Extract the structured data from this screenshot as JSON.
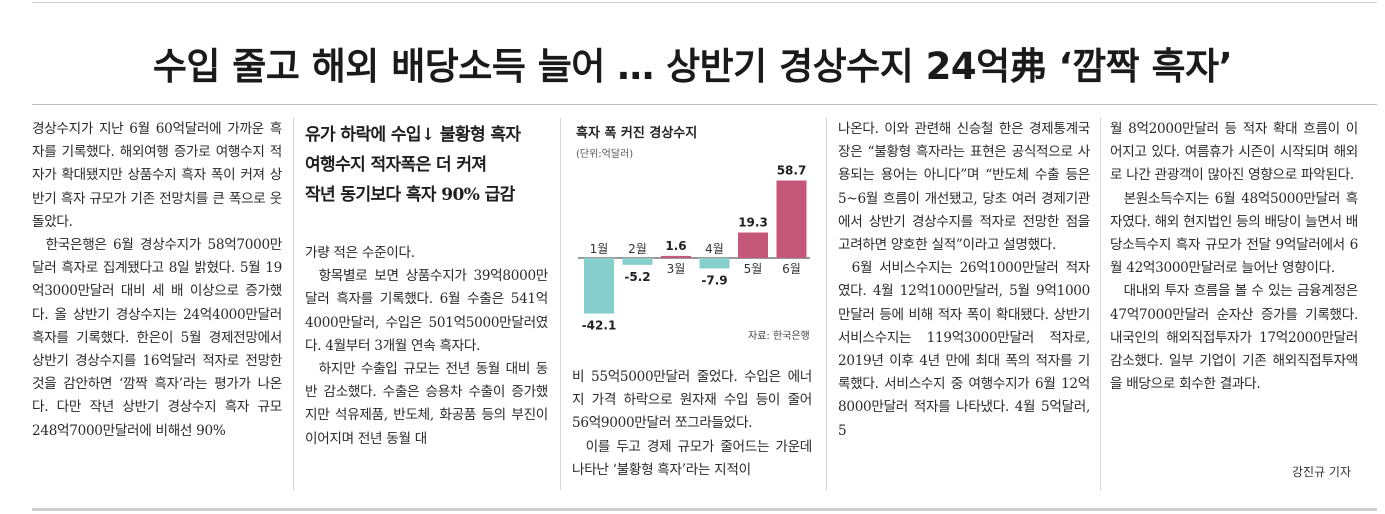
{
  "headline": "수입 줄고 해외 배당소득 늘어 … 상반기 경상수지 24억弗 ‘깜짝 흑자’",
  "subhead": {
    "line1": "유가 하락에 수입↓ 불황형 흑자",
    "line2": "여행수지 적자폭은 더 커져",
    "line3": "작년 동기보다 흑자 90% 급감"
  },
  "chart_data": {
    "type": "bar",
    "title": "흑자 폭 커진 경상수지",
    "unit": "(단위:억달러)",
    "categories": [
      "1월",
      "2월",
      "3월",
      "4월",
      "5월",
      "6월"
    ],
    "values": [
      -42.1,
      -5.2,
      1.6,
      -7.9,
      19.3,
      58.7
    ],
    "value_labels": [
      "-42.1",
      "-5.2",
      "1.6",
      "-7.9",
      "19.3",
      "58.7"
    ],
    "source": "자료: 한국은행",
    "colors": {
      "negative": "#86cfcd",
      "positive": "#c4577a"
    },
    "ylim": [
      -45,
      60
    ]
  },
  "columns": {
    "col1": [
      "경상수지가 지난 6월 60억달러에 가까운 흑자를 기록했다. 해외여행 증가로 여행수지 적자가 확대됐지만 상품수지 흑자 폭이 커져 상반기 흑자 규모가 기존 전망치를 큰 폭으로 웃돌았다.",
      "한국은행은 6월 경상수지가 58억7000만달러 흑자로 집계됐다고 8일 밝혔다. 5월 19억3000만달러 대비 세 배 이상으로 증가했다. 올 상반기 경상수지는 24억4000만달러 흑자를 기록했다. 한은이 5월 경제전망에서 상반기 경상수지를 16억달러 적자로 전망한 것을 감안하면 ‘깜짝 흑자’라는 평가가 나온다. 다만 작년 상반기 경상수지 흑자 규모 248억7000만달러에 비해선 90%"
    ],
    "col2": [
      "가량 적은 수준이다.",
      "항목별로 보면 상품수지가 39억8000만달러 흑자를 기록했다. 6월 수출은 541억4000만달러, 수입은 501억5000만달러였다. 4월부터 3개월 연속 흑자다.",
      "하지만 수출입 규모는 전년 동월 대비 동반 감소했다. 수출은 승용차 수출이 증가했지만 석유제품, 반도체, 화공품 등의 부진이 이어지며 전년 동월 대"
    ],
    "col3": [
      "비 55억5000만달러 줄었다. 수입은 에너지 가격 하락으로 원자재 수입 등이 줄어 56억9000만달러 쪼그라들었다.",
      "이를 두고 경제 규모가 줄어드는 가운데 나타난 ‘불황형 흑자’라는 지적이"
    ],
    "col4": [
      "나온다. 이와 관련해 신승철 한은 경제통계국장은 “불황형 흑자라는 표현은 공식적으로 사용되는 용어는 아니다”며 “반도체 수출 등은 5~6월 흐름이 개선됐고, 당초 여러 경제기관에서 상반기 경상수지를 적자로 전망한 점을 고려하면 양호한 실적”이라고 설명했다.",
      "6월 서비스수지는 26억1000만달러 적자였다. 4월 12억1000만달러, 5월 9억1000만달러 등에 비해 적자 폭이 확대됐다. 상반기 서비스수지는 119억3000만달러 적자로, 2019년 이후 4년 만에 최대 폭의 적자를 기록했다. 서비스수지 중 여행수지가 6월 12억8000만달러 적자를 나타냈다. 4월 5억달러, 5"
    ],
    "col5": [
      "월 8억2000만달러 등 적자 확대 흐름이 이어지고 있다. 여름휴가 시즌이 시작되며 해외로 나간 관광객이 많아진 영향으로 파악된다.",
      "본원소득수지는 6월 48억5000만달러 흑자였다. 해외 현지법인 등의 배당이 늘면서 배당소득수지 흑자 규모가 전달 9억달러에서 6월 42억3000만달러로 늘어난 영향이다.",
      "대내외 투자 흐름을 볼 수 있는 금융계정은 47억7000만달러 순자산 증가를 기록했다. 내국인의 해외직접투자가 17억2000만달러 감소했다. 일부 기업이 기존 해외직접투자액을 배당으로 회수한 결과다."
    ]
  },
  "byline": "강진규 기자"
}
